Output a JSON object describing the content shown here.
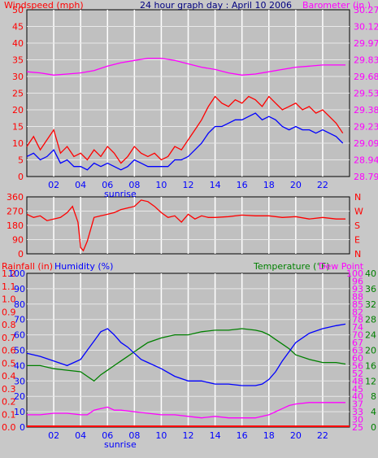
{
  "header": {
    "title": "24 hour graph day : April 10 2006",
    "left_label": "Windspeed (mph)",
    "right_label": "Barometer (in.)"
  },
  "colors": {
    "wind": "#ff0000",
    "gust_avg": "#0000ff",
    "barometer": "#ff00ff",
    "direction": "#ff0000",
    "humidity": "#0000ff",
    "temperature": "#008000",
    "dewpoint": "#ff00ff",
    "rain": "#ff0000",
    "plot_bg": "#c0c0c0",
    "grid": "#ffffff"
  },
  "sunrise_label": "sunrise",
  "chart_data": [
    {
      "type": "line",
      "name": "wind-panel",
      "ylabel": "Windspeed (mph)",
      "y2label": "Barometer (in.)",
      "ylim": [
        0,
        50
      ],
      "y_ticks": [
        0,
        5,
        10,
        15,
        20,
        25,
        30,
        35,
        40,
        45,
        50
      ],
      "y2_ticks": [
        "28.79",
        "28.94",
        "29.09",
        "29.23",
        "29.38",
        "29.53",
        "29.68",
        "29.83",
        "29.97",
        "30.12",
        "30.27"
      ],
      "x_ticks": [
        "02",
        "04",
        "06",
        "08",
        "10",
        "12",
        "14",
        "16",
        "18",
        "20",
        "22"
      ],
      "xlim": [
        0,
        24
      ],
      "series": [
        {
          "values_x": [
            0,
            0.5,
            1,
            1.5,
            2,
            2.5,
            3,
            3.5,
            4,
            4.5,
            5,
            5.5,
            6,
            6.5,
            7,
            7.5,
            8,
            8.5,
            9,
            9.5,
            10,
            10.5,
            11,
            11.5,
            12,
            12.5,
            13,
            13.5,
            14,
            14.5,
            15,
            15.5,
            16,
            16.5,
            17,
            17.5,
            18,
            18.5,
            19,
            19.5,
            20,
            20.5,
            21,
            21.5,
            22,
            22.5,
            23,
            23.5
          ],
          "values": [
            9,
            12,
            8,
            11,
            14,
            7,
            9,
            6,
            7,
            5,
            8,
            6,
            9,
            7,
            4,
            6,
            9,
            7,
            6,
            7,
            5,
            6,
            9,
            8,
            11,
            14,
            17,
            21,
            24,
            22,
            21,
            23,
            22,
            24,
            23,
            21,
            24,
            22,
            20,
            21,
            22,
            20,
            21,
            19,
            20,
            18,
            16,
            13
          ]
        },
        {
          "values_x": [
            0,
            0.5,
            1,
            1.5,
            2,
            2.5,
            3,
            3.5,
            4,
            4.5,
            5,
            5.5,
            6,
            6.5,
            7,
            7.5,
            8,
            8.5,
            9,
            9.5,
            10,
            10.5,
            11,
            11.5,
            12,
            12.5,
            13,
            13.5,
            14,
            14.5,
            15,
            15.5,
            16,
            16.5,
            17,
            17.5,
            18,
            18.5,
            19,
            19.5,
            20,
            20.5,
            21,
            21.5,
            22,
            22.5,
            23,
            23.5
          ],
          "values": [
            6,
            7,
            5,
            6,
            8,
            4,
            5,
            3,
            3,
            2,
            4,
            3,
            4,
            3,
            2,
            3,
            5,
            4,
            3,
            3,
            3,
            3,
            5,
            5,
            6,
            8,
            10,
            13,
            15,
            15,
            16,
            17,
            17,
            18,
            19,
            17,
            18,
            17,
            15,
            14,
            15,
            14,
            14,
            13,
            14,
            13,
            12,
            10
          ]
        },
        {
          "values_x": [
            0,
            1,
            2,
            3,
            4,
            5,
            6,
            7,
            8,
            9,
            10,
            11,
            12,
            13,
            14,
            15,
            16,
            17,
            18,
            19,
            20,
            21,
            22,
            23,
            23.7
          ],
          "values": [
            29.72,
            29.71,
            29.69,
            29.7,
            29.71,
            29.73,
            29.77,
            29.8,
            29.82,
            29.84,
            29.84,
            29.82,
            29.79,
            29.76,
            29.74,
            29.71,
            29.69,
            29.7,
            29.72,
            29.74,
            29.76,
            29.77,
            29.78,
            29.78,
            29.78
          ]
        }
      ]
    },
    {
      "type": "line",
      "name": "direction-panel",
      "ylim": [
        0,
        360
      ],
      "y_ticks": [
        0,
        90,
        180,
        270,
        360
      ],
      "y2_ticks": [
        "N",
        "E",
        "S",
        "W",
        "N"
      ],
      "series": [
        {
          "values_x": [
            0,
            0.5,
            1,
            1.5,
            2,
            2.5,
            3,
            3.4,
            3.8,
            4,
            4.2,
            4.5,
            5,
            5.5,
            6,
            6.5,
            7,
            7.5,
            8,
            8.5,
            9,
            9.5,
            10,
            10.5,
            11,
            11.5,
            12,
            12.5,
            13,
            13.5,
            14,
            15,
            16,
            17,
            18,
            19,
            20,
            21,
            22,
            23,
            23.7
          ],
          "values": [
            250,
            230,
            240,
            210,
            220,
            230,
            260,
            300,
            200,
            40,
            20,
            80,
            230,
            240,
            250,
            260,
            280,
            290,
            300,
            340,
            330,
            300,
            260,
            230,
            240,
            200,
            250,
            220,
            240,
            230,
            230,
            235,
            245,
            240,
            240,
            230,
            235,
            220,
            230,
            220,
            220
          ]
        }
      ]
    },
    {
      "type": "line",
      "name": "humidity-temp-panel",
      "ylabel": "Rainfall (in)",
      "ylabel2": "Humidity (%)",
      "y2label": "Temperature (°F)",
      "y2label2": "Dew Point",
      "ylim": [
        0,
        100
      ],
      "rain_ticks": [
        "0.0",
        "0.1",
        "0.2",
        "0.3",
        "0.4",
        "0.5",
        "0.6",
        "0.7",
        "0.8",
        "0.9",
        "1.0",
        "1.1",
        "1.2"
      ],
      "humidity_ticks": [
        "0",
        "10",
        "20",
        "30",
        "40",
        "50",
        "60",
        "70",
        "80",
        "90",
        "100"
      ],
      "temp_ticks": [
        "25",
        "30",
        "33",
        "37",
        "40",
        "45",
        "48",
        "52",
        "56",
        "60",
        "63",
        "67",
        "70",
        "74",
        "78",
        "82",
        "85",
        "88",
        "93",
        "96",
        "100"
      ],
      "dew_ticks": [
        "0",
        "4",
        "8",
        "12",
        "16",
        "20",
        "24",
        "28",
        "32",
        "36",
        "40"
      ],
      "series": [
        {
          "values_x": [
            0,
            1,
            2,
            3,
            4,
            4.5,
            5,
            5.5,
            6,
            6.5,
            7,
            7.5,
            8,
            8.5,
            9,
            10,
            11,
            12,
            13,
            14,
            15,
            16,
            17,
            17.5,
            18,
            18.5,
            19,
            19.5,
            20,
            21,
            22,
            23,
            23.7
          ],
          "values": [
            48,
            46,
            43,
            40,
            44,
            50,
            56,
            62,
            64,
            60,
            55,
            52,
            48,
            44,
            42,
            38,
            33,
            30,
            30,
            28,
            28,
            27,
            27,
            28,
            31,
            36,
            43,
            49,
            55,
            61,
            64,
            66,
            67
          ]
        },
        {
          "values_x": [
            0,
            1,
            2,
            3,
            4,
            4.5,
            5,
            5.5,
            6,
            6.5,
            7,
            7.5,
            8,
            8.5,
            9,
            10,
            11,
            12,
            13,
            14,
            15,
            16,
            17,
            17.5,
            18,
            18.5,
            19,
            19.5,
            20,
            21,
            22,
            23,
            23.7
          ],
          "values": [
            40,
            40,
            38,
            37,
            36,
            33,
            30,
            34,
            37,
            40,
            43,
            46,
            49,
            52,
            55,
            58,
            60,
            60,
            62,
            63,
            63,
            64,
            63,
            62,
            60,
            57,
            54,
            51,
            47,
            44,
            42,
            42,
            41
          ]
        },
        {
          "values_x": [
            0,
            1,
            2,
            3,
            4,
            4.5,
            5,
            5.5,
            6,
            6.5,
            7,
            8,
            9,
            10,
            11,
            12,
            13,
            14,
            15,
            16,
            17,
            17.5,
            18,
            18.5,
            19,
            19.5,
            20,
            21,
            22,
            23,
            23.7
          ],
          "values": [
            8,
            8,
            9,
            9,
            8,
            8,
            11,
            12,
            13,
            11,
            11,
            10,
            9,
            8,
            8,
            7,
            6,
            7,
            6,
            6,
            6,
            7,
            8,
            10,
            12,
            14,
            15,
            16,
            16,
            16,
            16
          ]
        }
      ]
    }
  ]
}
